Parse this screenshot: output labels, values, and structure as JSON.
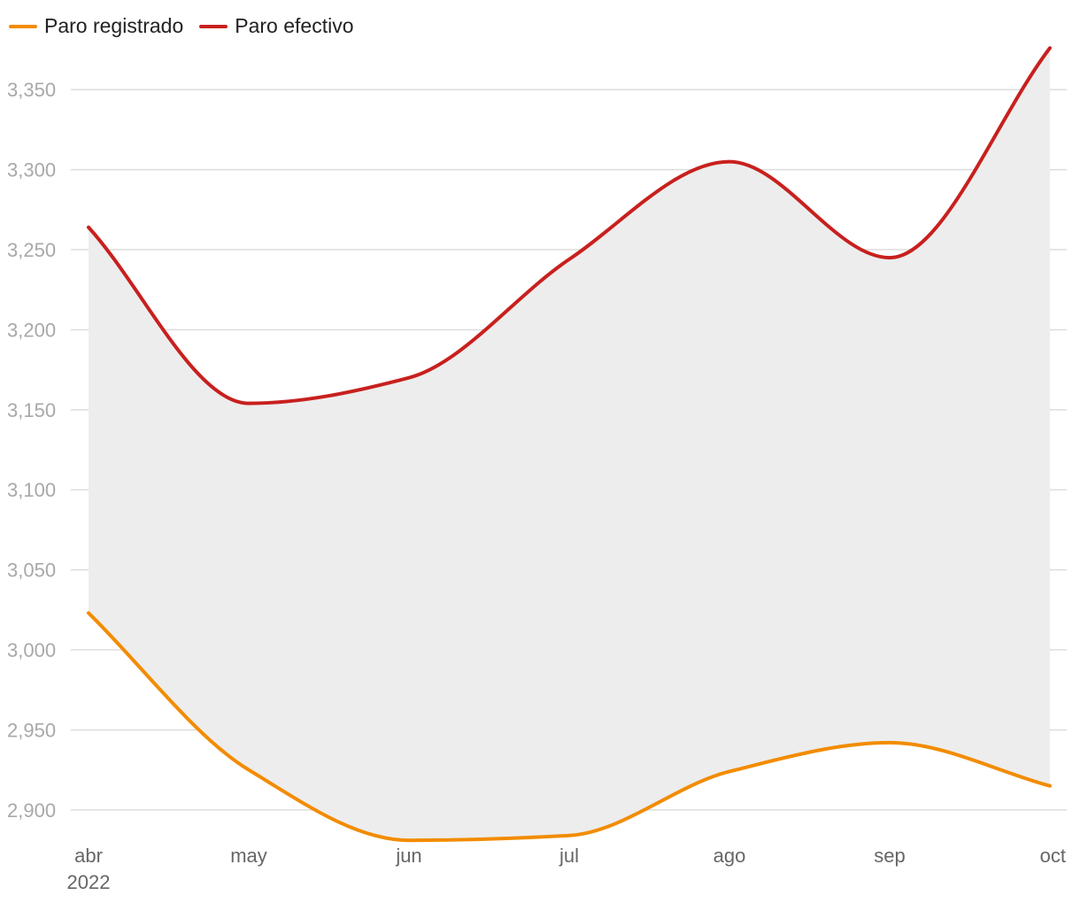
{
  "chart_data": {
    "type": "line",
    "title": "",
    "xlabel": "",
    "ylabel": "",
    "categories": [
      "abr",
      "may",
      "jun",
      "jul",
      "ago",
      "sep",
      "oct"
    ],
    "year_label": "2022",
    "series": [
      {
        "name": "Paro registrado",
        "color": "#f28c00",
        "values": [
          3023,
          2925,
          2881,
          2884,
          2924,
          2942,
          2915
        ]
      },
      {
        "name": "Paro efectivo",
        "color": "#c8201e",
        "values": [
          3264,
          3154,
          3170,
          3244,
          3305,
          3245,
          3376
        ]
      }
    ],
    "fill_between": true,
    "fill_color": "#ededed",
    "grid": true,
    "legend_position": "top-left",
    "ylim": [
      2880,
      3380
    ],
    "y_ticks": [
      2900,
      2950,
      3000,
      3050,
      3100,
      3150,
      3200,
      3250,
      3300,
      3350
    ],
    "y_tick_labels": [
      "2,900",
      "2,950",
      "3,000",
      "3,050",
      "3,100",
      "3,150",
      "3,200",
      "3,250",
      "3,300",
      "3,350"
    ]
  }
}
